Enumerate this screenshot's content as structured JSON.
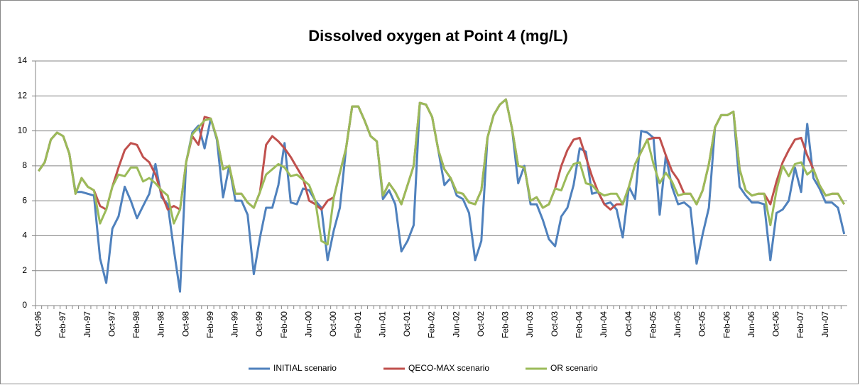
{
  "chart_data": {
    "type": "line",
    "title": "Dissolved oxygen at Point 4 (mg/L)",
    "categories": [
      "Oct-96",
      null,
      null,
      null,
      "Feb-97",
      null,
      null,
      null,
      "Jun-97",
      null,
      null,
      null,
      "Oct-97",
      null,
      null,
      null,
      "Feb-98",
      null,
      null,
      null,
      "Jun-98",
      null,
      null,
      null,
      "Oct-98",
      null,
      null,
      null,
      "Feb-99",
      null,
      null,
      null,
      "Jun-99",
      null,
      null,
      null,
      "Oct-99",
      null,
      null,
      null,
      "Feb-00",
      null,
      null,
      null,
      "Jun-00",
      null,
      null,
      null,
      "Oct-00",
      null,
      null,
      null,
      "Feb-01",
      null,
      null,
      null,
      "Jun-01",
      null,
      null,
      null,
      "Oct-01",
      null,
      null,
      null,
      "Feb-02",
      null,
      null,
      null,
      "Jun-02",
      null,
      null,
      null,
      "Oct-02",
      null,
      null,
      null,
      "Feb-03",
      null,
      null,
      null,
      "Jun-03",
      null,
      null,
      null,
      "Oct-03",
      null,
      null,
      null,
      "Feb-04",
      null,
      null,
      null,
      "Jun-04",
      null,
      null,
      null,
      "Oct-04",
      null,
      null,
      null,
      "Feb-05",
      null,
      null,
      null,
      "Jun-05",
      null,
      null,
      null,
      "Oct-05",
      null,
      null,
      null,
      "Feb-06",
      null,
      null,
      null,
      "Jun-06",
      null,
      null,
      null,
      "Oct-06",
      null,
      null,
      null,
      "Feb-07",
      null,
      null,
      null,
      "Jun-07",
      null,
      null,
      null
    ],
    "series": [
      {
        "name": "INITIAL scenario",
        "color": "#4f81bd",
        "values": [
          7.7,
          8.2,
          9.5,
          9.9,
          9.7,
          8.7,
          6.5,
          6.5,
          6.4,
          6.3,
          2.7,
          1.3,
          4.4,
          5.1,
          6.8,
          6.0,
          5.0,
          5.7,
          6.4,
          8.1,
          6.2,
          5.8,
          3.2,
          0.8,
          8.2,
          9.9,
          10.3,
          9.0,
          10.7,
          9.5,
          6.2,
          8.0,
          6.0,
          6.0,
          5.2,
          1.8,
          3.9,
          5.6,
          5.6,
          6.9,
          9.3,
          5.9,
          5.8,
          6.7,
          6.6,
          6.0,
          5.6,
          2.6,
          4.3,
          5.6,
          9.0,
          11.4,
          11.4,
          10.6,
          9.7,
          9.4,
          6.1,
          6.6,
          5.8,
          3.1,
          3.7,
          4.6,
          11.6,
          11.5,
          10.8,
          8.9,
          6.9,
          7.3,
          6.3,
          6.1,
          5.3,
          2.6,
          3.7,
          9.6,
          10.9,
          11.5,
          11.8,
          10.1,
          7.0,
          8.0,
          5.8,
          5.8,
          4.9,
          3.8,
          3.4,
          5.1,
          5.6,
          6.9,
          9.0,
          8.8,
          6.4,
          6.5,
          5.8,
          5.9,
          5.5,
          3.9,
          6.8,
          6.1,
          10.0,
          9.9,
          9.6,
          5.2,
          8.6,
          6.8,
          5.8,
          5.9,
          5.6,
          2.4,
          4.1,
          5.6,
          10.2,
          10.9,
          10.9,
          11.1,
          6.8,
          6.3,
          5.9,
          5.9,
          5.8,
          2.6,
          5.3,
          5.5,
          6.0,
          7.9,
          6.5,
          10.4,
          7.3,
          6.7,
          5.9,
          5.9,
          5.6,
          4.1
        ]
      },
      {
        "name": "QECO-MAX scenario",
        "color": "#c0504d",
        "values": [
          7.7,
          8.2,
          9.5,
          9.9,
          9.7,
          8.7,
          6.4,
          7.3,
          6.8,
          6.6,
          5.7,
          5.5,
          6.8,
          7.9,
          8.9,
          9.3,
          9.2,
          8.5,
          8.2,
          7.5,
          6.4,
          5.5,
          5.7,
          5.5,
          8.2,
          9.7,
          9.2,
          10.8,
          10.7,
          9.6,
          7.8,
          8.0,
          6.4,
          6.4,
          5.9,
          5.6,
          6.5,
          9.2,
          9.7,
          9.4,
          9.0,
          8.5,
          7.9,
          7.3,
          6.0,
          5.8,
          5.5,
          6.0,
          6.2,
          7.6,
          9.0,
          11.4,
          11.4,
          10.6,
          9.7,
          9.4,
          6.3,
          7.0,
          6.5,
          5.8,
          6.9,
          8.0,
          11.6,
          11.5,
          10.8,
          8.9,
          7.8,
          7.3,
          6.5,
          6.4,
          5.9,
          5.8,
          6.6,
          9.6,
          10.9,
          11.5,
          11.8,
          10.1,
          8.0,
          7.9,
          6.0,
          6.2,
          5.6,
          5.8,
          6.7,
          8.0,
          8.9,
          9.5,
          9.6,
          8.5,
          7.4,
          6.5,
          5.8,
          5.5,
          5.8,
          5.8,
          6.8,
          8.1,
          8.8,
          9.5,
          9.6,
          9.6,
          8.6,
          7.7,
          7.2,
          6.4,
          6.4,
          5.8,
          6.6,
          8.1,
          10.2,
          10.9,
          10.9,
          11.1,
          7.8,
          6.6,
          6.3,
          6.4,
          6.4,
          5.8,
          7.1,
          8.2,
          8.9,
          9.5,
          9.6,
          8.6,
          7.8,
          6.9,
          6.3,
          6.4,
          6.4,
          5.8
        ]
      },
      {
        "name": "OR scenario",
        "color": "#9bbb59",
        "values": [
          7.7,
          8.2,
          9.5,
          9.9,
          9.7,
          8.7,
          6.4,
          7.3,
          6.8,
          6.6,
          4.7,
          5.5,
          6.8,
          7.5,
          7.4,
          7.9,
          7.9,
          7.1,
          7.3,
          7.0,
          6.6,
          6.3,
          4.7,
          5.5,
          8.2,
          9.8,
          10.2,
          10.6,
          10.7,
          9.6,
          7.8,
          8.0,
          6.4,
          6.4,
          5.9,
          5.6,
          6.5,
          7.5,
          7.8,
          8.1,
          7.9,
          7.4,
          7.5,
          7.2,
          6.9,
          6.0,
          3.7,
          3.5,
          6.2,
          7.6,
          9.0,
          11.4,
          11.4,
          10.6,
          9.7,
          9.4,
          6.3,
          7.0,
          6.5,
          5.8,
          6.9,
          8.0,
          11.6,
          11.5,
          10.8,
          8.9,
          7.8,
          7.3,
          6.5,
          6.4,
          5.9,
          5.8,
          6.6,
          9.6,
          10.9,
          11.5,
          11.8,
          10.1,
          8.0,
          7.9,
          6.0,
          6.2,
          5.6,
          5.8,
          6.7,
          6.6,
          7.5,
          8.1,
          8.2,
          7.0,
          6.9,
          6.5,
          6.3,
          6.4,
          6.4,
          5.8,
          6.8,
          8.1,
          8.8,
          9.5,
          8.1,
          7.0,
          7.6,
          7.1,
          6.3,
          6.4,
          6.4,
          5.8,
          6.6,
          8.1,
          10.2,
          10.9,
          10.9,
          11.1,
          7.8,
          6.6,
          6.3,
          6.4,
          6.4,
          4.6,
          6.6,
          8.0,
          7.4,
          8.1,
          8.2,
          7.5,
          7.8,
          6.9,
          6.3,
          6.4,
          6.4,
          5.8
        ]
      }
    ],
    "ylim": [
      0,
      14
    ],
    "yticks": [
      0,
      2,
      4,
      6,
      8,
      10,
      12,
      14
    ],
    "grid": true,
    "legend": "bottom"
  }
}
